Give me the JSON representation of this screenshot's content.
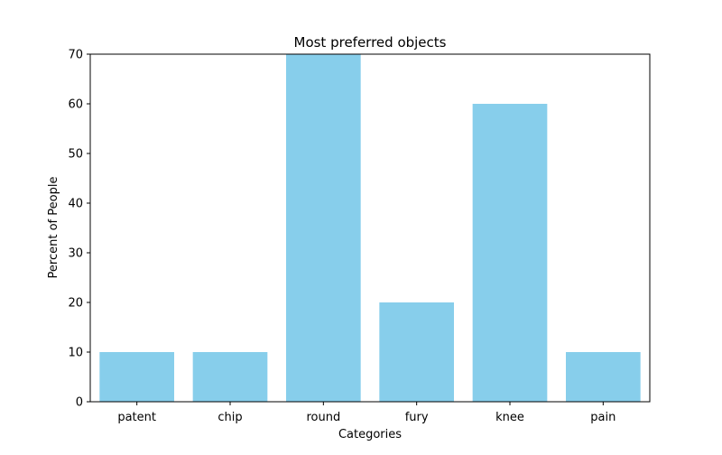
{
  "chart_data": {
    "type": "bar",
    "title": "Most preferred objects",
    "xlabel": "Categories",
    "ylabel": "Percent of People",
    "categories": [
      "patent",
      "chip",
      "round",
      "fury",
      "knee",
      "pain"
    ],
    "values": [
      10,
      10,
      70,
      20,
      60,
      10
    ],
    "ylim": [
      0,
      70
    ],
    "yticks": [
      0,
      10,
      20,
      30,
      40,
      50,
      60,
      70
    ],
    "bar_color": "#87ceeb",
    "grid": false,
    "legend": "none"
  }
}
